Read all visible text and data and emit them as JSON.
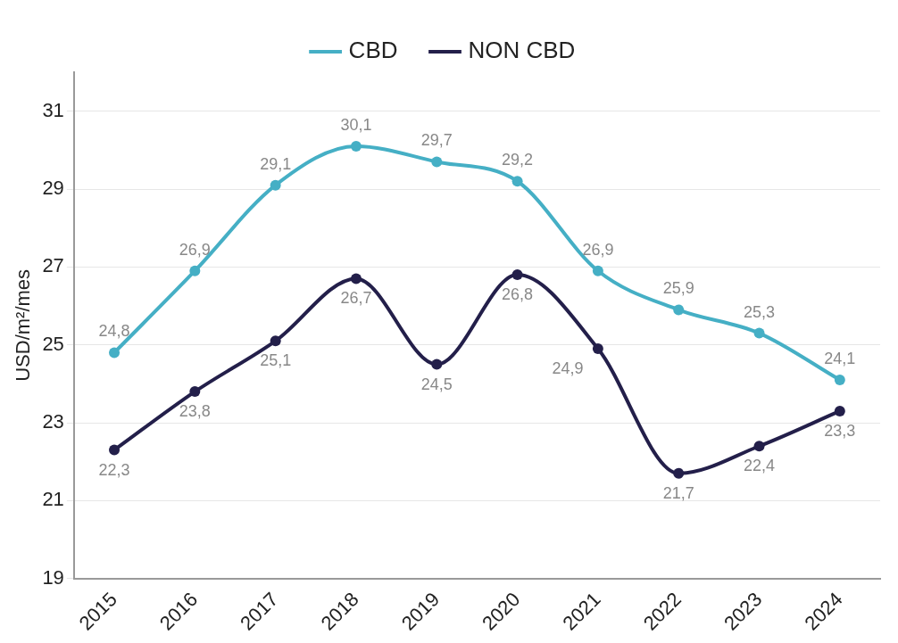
{
  "chart_data": {
    "type": "line",
    "ylabel": "USD/m²/mes",
    "categories": [
      "2015",
      "2016",
      "2017",
      "2018",
      "2019",
      "2020",
      "2021",
      "2022",
      "2023",
      "2024"
    ],
    "series": [
      {
        "name": "CBD",
        "color": "#45afc5",
        "values": [
          24.8,
          26.9,
          29.1,
          30.1,
          29.7,
          29.2,
          26.9,
          25.9,
          25.3,
          24.1
        ],
        "value_labels": [
          "24,8",
          "26,9",
          "29,1",
          "30,1",
          "29,7",
          "29,2",
          "26,9",
          "25,9",
          "25,3",
          "24,1"
        ]
      },
      {
        "name": "NON CBD",
        "color": "#231f4a",
        "values": [
          22.3,
          23.8,
          25.1,
          26.7,
          24.5,
          26.8,
          24.9,
          21.7,
          22.4,
          23.3
        ],
        "value_labels": [
          "22,3",
          "23,8",
          "25,1",
          "26,7",
          "24,5",
          "26,8",
          "24,9",
          "21,7",
          "22,4",
          "23,3"
        ]
      }
    ],
    "ylim": [
      19,
      32
    ],
    "yticks": [
      19,
      21,
      23,
      25,
      27,
      29,
      31
    ],
    "grid": "y",
    "legend": "top",
    "marker": "circle",
    "line_style": "solid"
  }
}
